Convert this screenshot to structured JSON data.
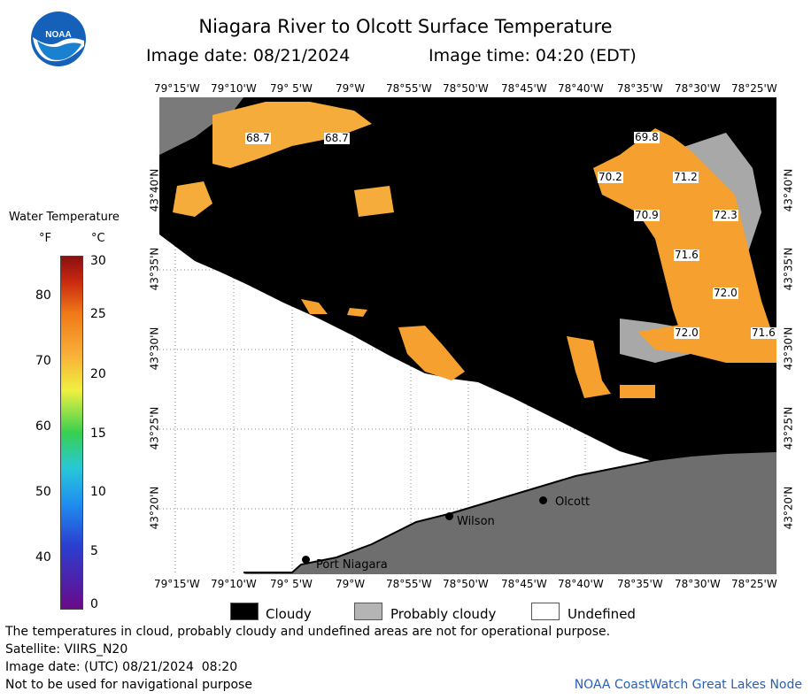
{
  "header": {
    "title": "Niagara River to Olcott Surface Temperature",
    "image_date": "Image date: 08/21/2024",
    "image_time": "Image time: 04:20 (EDT)"
  },
  "map": {
    "longitude_labels": [
      "79°15'W",
      "79°10'W",
      "79° 5'W",
      "79°W",
      "78°55'W",
      "78°50'W",
      "78°45'W",
      "78°40'W",
      "78°35'W",
      "78°30'W",
      "78°25'W"
    ],
    "latitude_labels": [
      "43°40'N",
      "43°35'N",
      "43°30'N",
      "43°25'N",
      "43°20'N"
    ],
    "temperature_labels": [
      "68.7",
      "68.7",
      "69.8",
      "70.2",
      "71.2",
      "70.9",
      "72.3",
      "71.6",
      "72.0",
      "72.0",
      "71.6"
    ],
    "places": [
      "Olcott",
      "Wilson",
      "Port Niagara"
    ]
  },
  "legend": {
    "title": "Water Temperature",
    "unit_f": "°F",
    "unit_c": "°C",
    "f_ticks": [
      "80",
      "70",
      "60",
      "50",
      "40"
    ],
    "c_ticks": [
      "30",
      "25",
      "20",
      "15",
      "10",
      "5",
      "0"
    ],
    "colors": [
      "#6a0a8a",
      "#2a3fd0",
      "#1f8ff0",
      "#28c8d8",
      "#38d050",
      "#f0f040",
      "#f8b038",
      "#f07818",
      "#c82810",
      "#8a1010"
    ]
  },
  "key": {
    "cloudy": "Cloudy",
    "probably_cloudy": "Probably cloudy",
    "undefined": "Undefined"
  },
  "footer": {
    "disclaimer": "The temperatures in cloud, probably cloudy and undefined areas are not for operational purpose.",
    "satellite": "Satellite: VIIRS_N20",
    "utc_date": "Image date: (UTC) 08/21/2024  08:20",
    "nav": "Not to be used for navigational purpose",
    "node": "NOAA CoastWatch Great Lakes Node"
  }
}
